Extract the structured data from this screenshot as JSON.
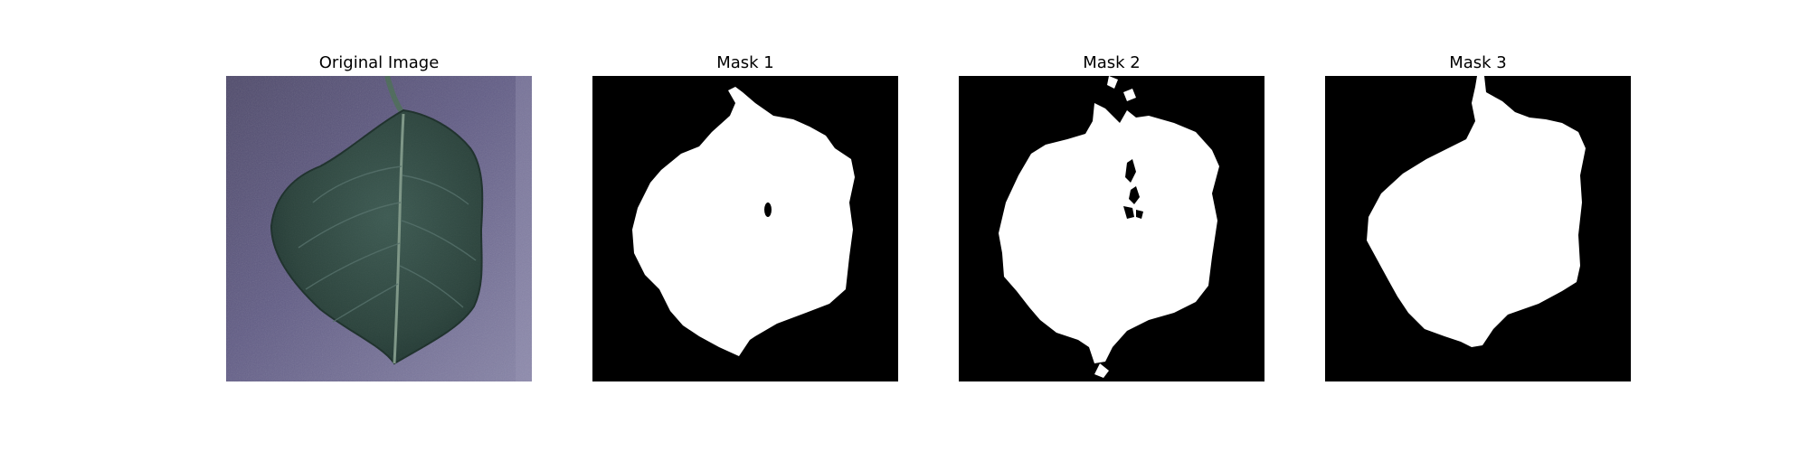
{
  "figure": {
    "panels": [
      {
        "title": "Original Image",
        "kind": "photo"
      },
      {
        "title": "Mask 1",
        "kind": "mask"
      },
      {
        "title": "Mask 2",
        "kind": "mask"
      },
      {
        "title": "Mask 3",
        "kind": "mask"
      }
    ]
  },
  "colors": {
    "page_background": "#ffffff",
    "mask_background": "#000000",
    "mask_foreground": "#ffffff",
    "photo_background": "#5f5b82",
    "leaf_color": "#2f4a42",
    "leaf_vein": "#7d9686"
  }
}
